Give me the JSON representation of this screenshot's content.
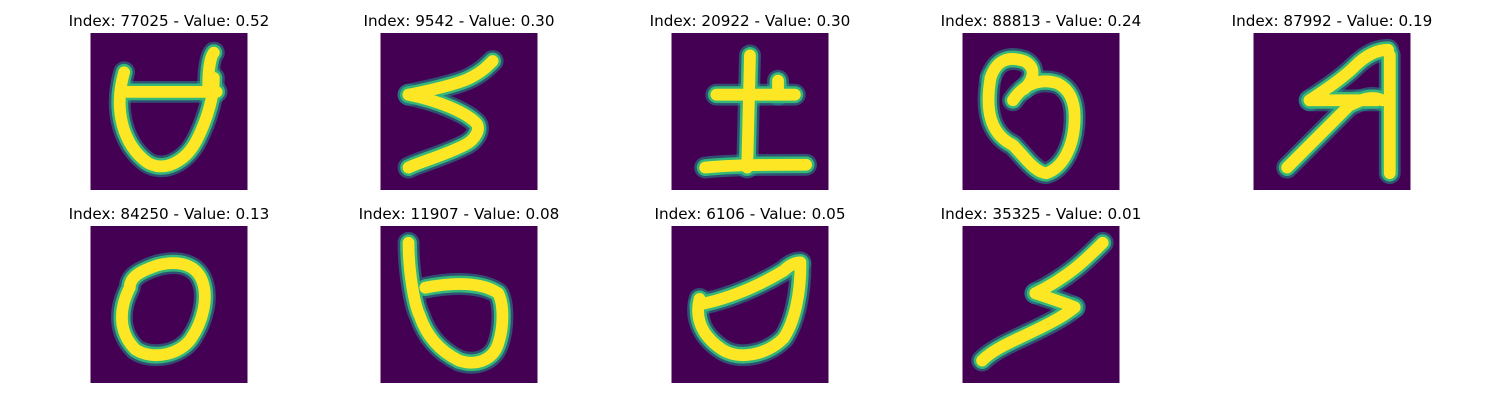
{
  "figure": {
    "background_color": "#440154",
    "stroke_core_color": "#fde725",
    "stroke_edge_color": "#35b779",
    "stroke_outer_color": "#21918c",
    "panels": [
      {
        "id": "p0",
        "title": "Index: 77025 - Value: 0.52",
        "index": 77025,
        "value": 0.52
      },
      {
        "id": "p1",
        "title": "Index: 9542 - Value: 0.30",
        "index": 9542,
        "value": 0.3
      },
      {
        "id": "p2",
        "title": "Index: 20922 - Value: 0.30",
        "index": 20922,
        "value": 0.3
      },
      {
        "id": "p3",
        "title": "Index: 88813 - Value: 0.24",
        "index": 88813,
        "value": 0.24
      },
      {
        "id": "p4",
        "title": "Index: 87992 - Value: 0.19",
        "index": 87992,
        "value": 0.19
      },
      {
        "id": "p5",
        "title": "Index: 84250 - Value: 0.13",
        "index": 84250,
        "value": 0.13
      },
      {
        "id": "p6",
        "title": "Index: 11907 - Value: 0.08",
        "index": 11907,
        "value": 0.08
      },
      {
        "id": "p7",
        "title": "Index: 6106 - Value: 0.05",
        "index": 6106,
        "value": 0.05
      },
      {
        "id": "p8",
        "title": "Index: 35325 - Value: 0.01",
        "index": 35325,
        "value": 0.01
      }
    ]
  }
}
